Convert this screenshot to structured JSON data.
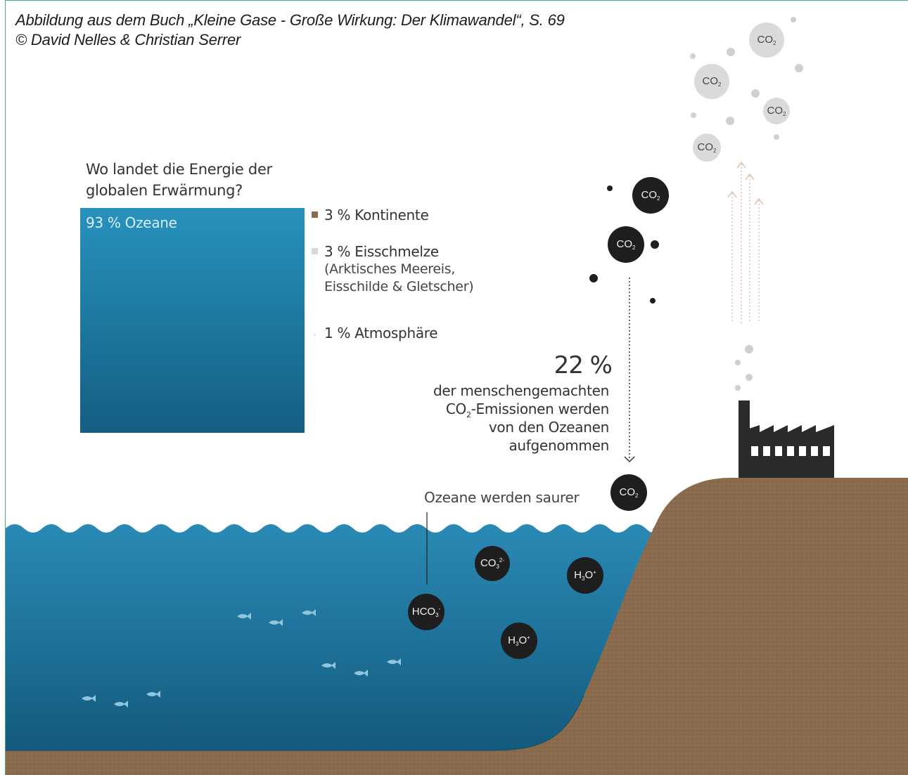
{
  "caption": {
    "line1": "Abbildung aus dem Buch „Kleine Gase - Große Wirkung: Der Klimawandel“, S. 69",
    "line2": "© David Nelles & Christian Serrer"
  },
  "energy_chart": {
    "question_line1": "Wo landet die Energie der",
    "question_line2": "globalen Erwärmung?",
    "ocean_label": "93 % Ozeane",
    "legend": [
      {
        "label": "3 % Kontinente",
        "color": "#8a6a4a"
      },
      {
        "label": "3 % Eisschmelze",
        "detail_line1": "(Arktisches Meereis,",
        "detail_line2": "Eisschilde & Gletscher)",
        "color": "#d8d8d8"
      },
      {
        "label": "1 % Atmosphäre",
        "color": "#e6e6e6"
      }
    ]
  },
  "absorption": {
    "percent": "22 %",
    "line1": "der menschengemachten",
    "line2_pre": "CO",
    "line2_sub": "2",
    "line2_post": "-Emissionen werden",
    "line3": "von den Ozeanen",
    "line4": "aufgenommen"
  },
  "acidification_label": "Ozeane werden saurer",
  "molecules": {
    "co2": {
      "base": "CO",
      "sub": "2"
    },
    "co3": {
      "base": "CO",
      "sub": "3",
      "sup": "2-"
    },
    "h3o": {
      "base": "H",
      "sub": "3",
      "rest": "O",
      "sup": "+"
    },
    "hco3": {
      "base": "HCO",
      "sub": "3",
      "sup": "-"
    }
  },
  "colors": {
    "ocean_top": "#2d8cb6",
    "ocean_bottom": "#12597d",
    "soil": "#8a6b4d",
    "frame": "#3fae7a",
    "molecule_dark": "#1e1e1e",
    "molecule_light": "#dadada",
    "factory": "#2a2a2a"
  }
}
